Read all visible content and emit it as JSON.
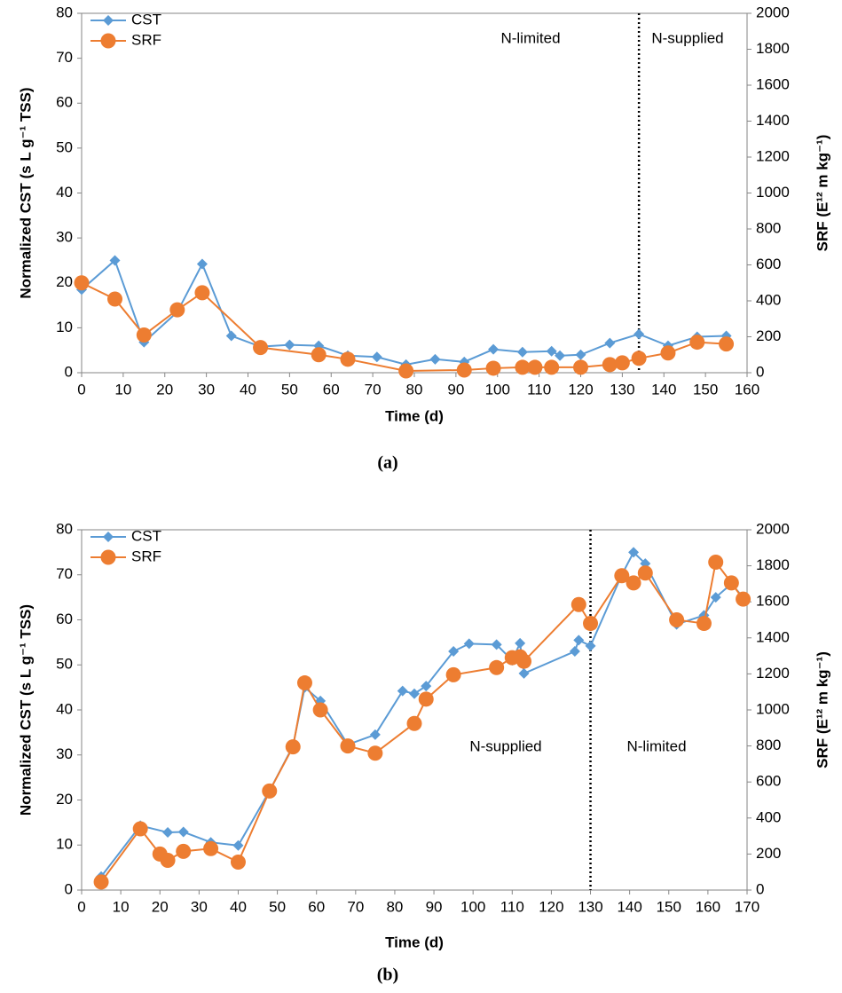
{
  "chart_data": [
    {
      "type": "line",
      "label": "(a)",
      "x_label": "Time (d)",
      "y_label": "Normalized CST (s L g⁻¹ TSS)",
      "y2_label": "SRF (E¹² m kg⁻¹)",
      "xlim": [
        0,
        160
      ],
      "xticks": [
        0,
        10,
        20,
        30,
        40,
        50,
        60,
        70,
        80,
        90,
        100,
        110,
        120,
        130,
        140,
        150,
        160
      ],
      "ylim": [
        0,
        80
      ],
      "yticks": [
        0,
        10,
        20,
        30,
        40,
        50,
        60,
        70,
        80
      ],
      "y2lim": [
        0,
        2000
      ],
      "y2ticks": [
        0,
        200,
        400,
        600,
        800,
        1000,
        1200,
        1400,
        1600,
        1800,
        2000
      ],
      "divider_x": 134,
      "annotations": [
        "N-limited",
        "N-supplied"
      ],
      "series": [
        {
          "name": "CST",
          "color": "#5b9bd5",
          "marker": "diamond",
          "x": [
            0,
            8,
            15,
            23,
            29,
            36,
            43,
            50,
            57,
            64,
            71,
            78,
            85,
            92,
            99,
            106,
            113,
            115,
            120,
            127,
            134,
            141,
            148,
            155
          ],
          "values": [
            18.5,
            25,
            6.8,
            13.5,
            24.2,
            8.2,
            5.8,
            6.2,
            6,
            3.8,
            3.5,
            1.8,
            3,
            2.4,
            5.2,
            4.6,
            4.8,
            3.8,
            4,
            6.6,
            8.6,
            6,
            8,
            8.2
          ]
        },
        {
          "name": "SRF",
          "color": "#ed7d31",
          "marker": "circle",
          "axis": "y2",
          "x": [
            0,
            8,
            15,
            23,
            29,
            43,
            57,
            64,
            78,
            92,
            99,
            106,
            109,
            113,
            120,
            127,
            130,
            134,
            141,
            148,
            155
          ],
          "values": [
            500,
            410,
            210,
            350,
            445,
            140,
            100,
            75,
            10,
            15,
            25,
            30,
            30,
            30,
            30,
            45,
            55,
            80,
            110,
            170,
            160
          ]
        }
      ]
    },
    {
      "type": "line",
      "label": "(b)",
      "x_label": "Time (d)",
      "y_label": "Normalized CST (s L g⁻¹ TSS)",
      "y2_label": "SRF (E¹² m kg⁻¹)",
      "xlim": [
        0,
        170
      ],
      "xticks": [
        0,
        10,
        20,
        30,
        40,
        50,
        60,
        70,
        80,
        90,
        100,
        110,
        120,
        130,
        140,
        150,
        160,
        170
      ],
      "ylim": [
        0,
        80
      ],
      "yticks": [
        0,
        10,
        20,
        30,
        40,
        50,
        60,
        70,
        80
      ],
      "y2lim": [
        0,
        2000
      ],
      "y2ticks": [
        0,
        200,
        400,
        600,
        800,
        1000,
        1200,
        1400,
        1600,
        1800,
        2000
      ],
      "divider_x": 130,
      "annotations": [
        "N-supplied",
        "N-limited"
      ],
      "series": [
        {
          "name": "CST",
          "color": "#5b9bd5",
          "marker": "diamond",
          "x": [
            5,
            15,
            22,
            26,
            33,
            40,
            48,
            54,
            57,
            61,
            68,
            75,
            82,
            85,
            88,
            95,
            99,
            106,
            110,
            112,
            113,
            126,
            127,
            130,
            138,
            141,
            144,
            152,
            159,
            162,
            166,
            169
          ],
          "values": [
            3,
            14.3,
            12.8,
            12.9,
            10.6,
            9.9,
            22,
            32,
            45,
            42,
            32.3,
            34.5,
            44.2,
            43.6,
            45.3,
            53,
            54.7,
            54.5,
            51,
            54.8,
            48.1,
            53,
            55.5,
            54.2,
            70,
            75,
            72.5,
            59,
            61,
            65,
            68,
            65
          ]
        },
        {
          "name": "SRF",
          "color": "#ed7d31",
          "marker": "circle",
          "axis": "y2",
          "x": [
            5,
            15,
            20,
            22,
            26,
            33,
            40,
            48,
            54,
            57,
            61,
            68,
            75,
            85,
            88,
            95,
            106,
            110,
            112,
            113,
            127,
            130,
            138,
            141,
            144,
            152,
            159,
            162,
            166,
            169
          ],
          "values": [
            45,
            340,
            200,
            165,
            215,
            230,
            155,
            550,
            795,
            1150,
            1000,
            800,
            760,
            925,
            1060,
            1195,
            1235,
            1290,
            1295,
            1270,
            1585,
            1480,
            1745,
            1705,
            1760,
            1500,
            1480,
            1820,
            1705,
            1615
          ]
        }
      ]
    }
  ]
}
